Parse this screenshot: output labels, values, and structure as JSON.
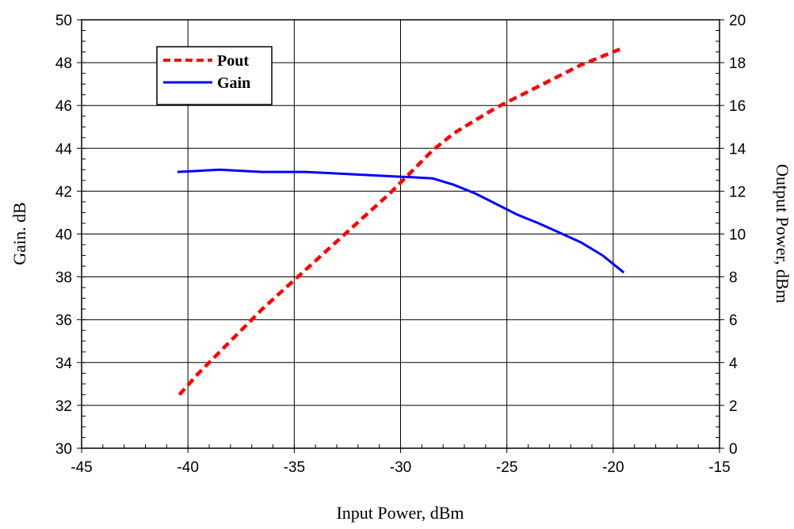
{
  "chart_data": {
    "type": "line",
    "xlabel": "Input Power, dBm",
    "ylabel": "Gain. dB",
    "y2label": "Output Power, dBm",
    "xlim": [
      -45,
      -15
    ],
    "ylim": [
      30,
      50
    ],
    "y2lim": [
      0,
      20
    ],
    "xticks": [
      -45,
      -40,
      -35,
      -30,
      -25,
      -20,
      -15
    ],
    "yticks": [
      30,
      32,
      34,
      36,
      38,
      40,
      42,
      44,
      46,
      48,
      50
    ],
    "y2ticks": [
      0,
      2,
      4,
      6,
      8,
      10,
      12,
      14,
      16,
      18,
      20
    ],
    "grid": true,
    "legend_position": "top-left",
    "series": [
      {
        "name": "Pout",
        "axis": "right",
        "color": "#ff0000",
        "style": "dashed",
        "x": [
          -40.4,
          -39.5,
          -38.5,
          -37.5,
          -36.5,
          -35.5,
          -34.5,
          -33.5,
          -32.5,
          -31.5,
          -30.5,
          -29.5,
          -28.5,
          -27.5,
          -26.5,
          -25.5,
          -24.5,
          -23.5,
          -22.5,
          -21.5,
          -20.5,
          -19.5
        ],
        "values": [
          2.5,
          3.5,
          4.5,
          5.5,
          6.5,
          7.4,
          8.3,
          9.2,
          10.1,
          11.0,
          11.9,
          12.9,
          13.9,
          14.7,
          15.3,
          15.9,
          16.4,
          16.9,
          17.4,
          17.9,
          18.3,
          18.7
        ]
      },
      {
        "name": "Gain",
        "axis": "left",
        "color": "#0000ff",
        "style": "solid",
        "x": [
          -40.5,
          -39.5,
          -38.5,
          -37.5,
          -36.5,
          -35.5,
          -34.5,
          -33.5,
          -32.5,
          -31.5,
          -30.5,
          -29.5,
          -28.5,
          -27.5,
          -26.5,
          -25.5,
          -24.5,
          -23.5,
          -22.5,
          -21.5,
          -20.5,
          -19.5
        ],
        "values": [
          42.9,
          42.95,
          43.0,
          42.95,
          42.9,
          42.9,
          42.9,
          42.85,
          42.8,
          42.75,
          42.7,
          42.65,
          42.6,
          42.3,
          41.9,
          41.4,
          40.9,
          40.5,
          40.05,
          39.6,
          39.0,
          38.2
        ]
      }
    ]
  }
}
